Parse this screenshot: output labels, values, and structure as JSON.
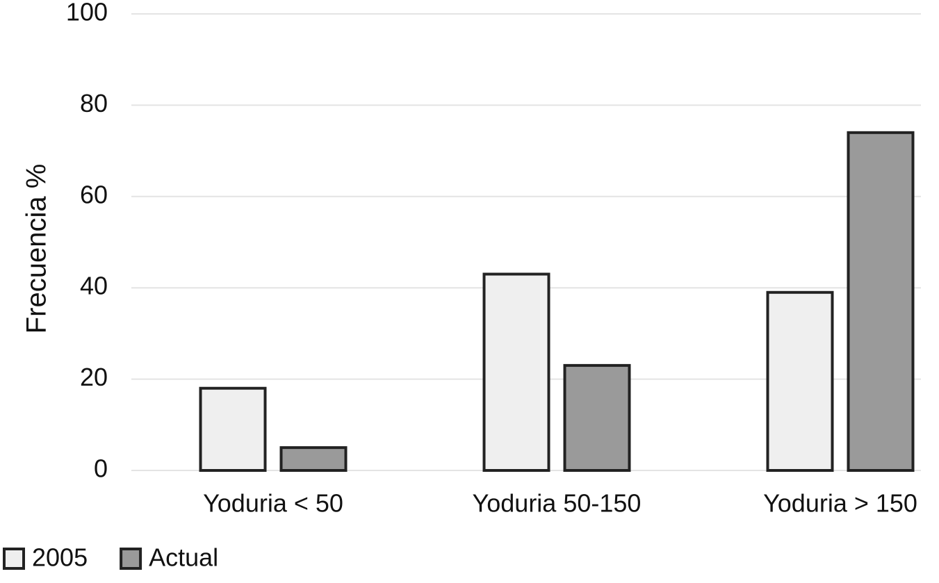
{
  "chart_data": {
    "type": "bar",
    "y_label": "Frecuencia %",
    "categories": [
      "Yoduria < 50",
      "Yoduria 50-150",
      "Yoduria > 150"
    ],
    "series": [
      {
        "name": "2005",
        "color": "#efefef",
        "values": [
          18,
          43,
          39
        ]
      },
      {
        "name": "Actual",
        "color": "#9a9a9a",
        "values": [
          5,
          23,
          74
        ]
      }
    ],
    "ylim": [
      0,
      100
    ],
    "yticks": [
      0,
      20,
      40,
      60,
      80,
      100
    ],
    "grid": true,
    "legend": "bottom-left"
  }
}
